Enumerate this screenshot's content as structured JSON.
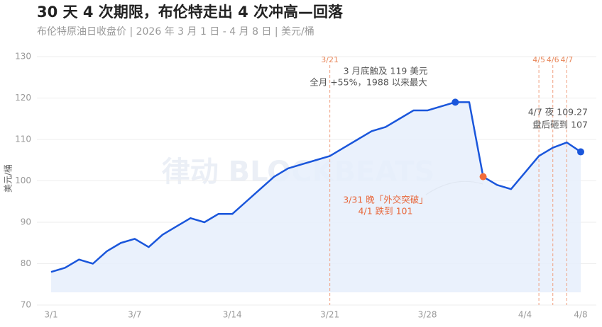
{
  "title": "30 天 4 次期限，布伦特走出 4 次冲高—回落",
  "subtitle": "布伦特原油日收盘价 | 2026 年 3 月 1 日 - 4 月 8 日 | 美元/桶",
  "watermark": "律动 BLOCKBEATS",
  "chart_data": {
    "type": "line",
    "y_label": "美元/桶",
    "categories": [
      "3/1",
      null,
      null,
      null,
      null,
      null,
      "3/7",
      null,
      null,
      null,
      null,
      null,
      null,
      "3/14",
      null,
      null,
      null,
      null,
      null,
      null,
      "3/21",
      null,
      null,
      null,
      null,
      null,
      null,
      "3/28",
      null,
      null,
      null,
      null,
      null,
      null,
      "4/4",
      null,
      null,
      null,
      "4/8"
    ],
    "series": [
      {
        "name": "布伦特原油",
        "color": "#1a56db",
        "values": [
          78,
          79,
          81,
          80,
          83,
          85,
          86,
          84,
          87,
          89,
          91,
          90,
          92,
          92,
          95,
          98,
          101,
          103,
          104,
          105,
          106,
          108,
          110,
          112,
          113,
          115,
          117,
          117,
          118,
          119,
          119,
          101,
          99,
          98,
          102,
          106,
          108,
          109.27,
          107
        ]
      }
    ],
    "ylim": [
      70,
      130
    ],
    "yticks": [
      70,
      80,
      90,
      100,
      110,
      120,
      130
    ],
    "grid": true,
    "highlights": [
      {
        "index": 29,
        "color": "#1a56db"
      },
      {
        "index": 31,
        "color": "#f26b3a"
      },
      {
        "index": 38,
        "color": "#1a56db"
      }
    ],
    "events": [
      {
        "label": "3/21",
        "index": 20
      },
      {
        "label": "4/5",
        "index": 35
      },
      {
        "label": "4/6",
        "index": 36
      },
      {
        "label": "4/7",
        "index": 37
      }
    ],
    "annotations": [
      {
        "text": "3 月底触及 119 美元"
      },
      {
        "text": "全月 +55%，1988 以来最大"
      },
      {
        "text": "4/7 夜 109.27"
      },
      {
        "text": "盘后砸到 107"
      },
      {
        "text": "3/31 晚「外交突破」"
      },
      {
        "text": "4/1 跌到 101"
      }
    ]
  }
}
